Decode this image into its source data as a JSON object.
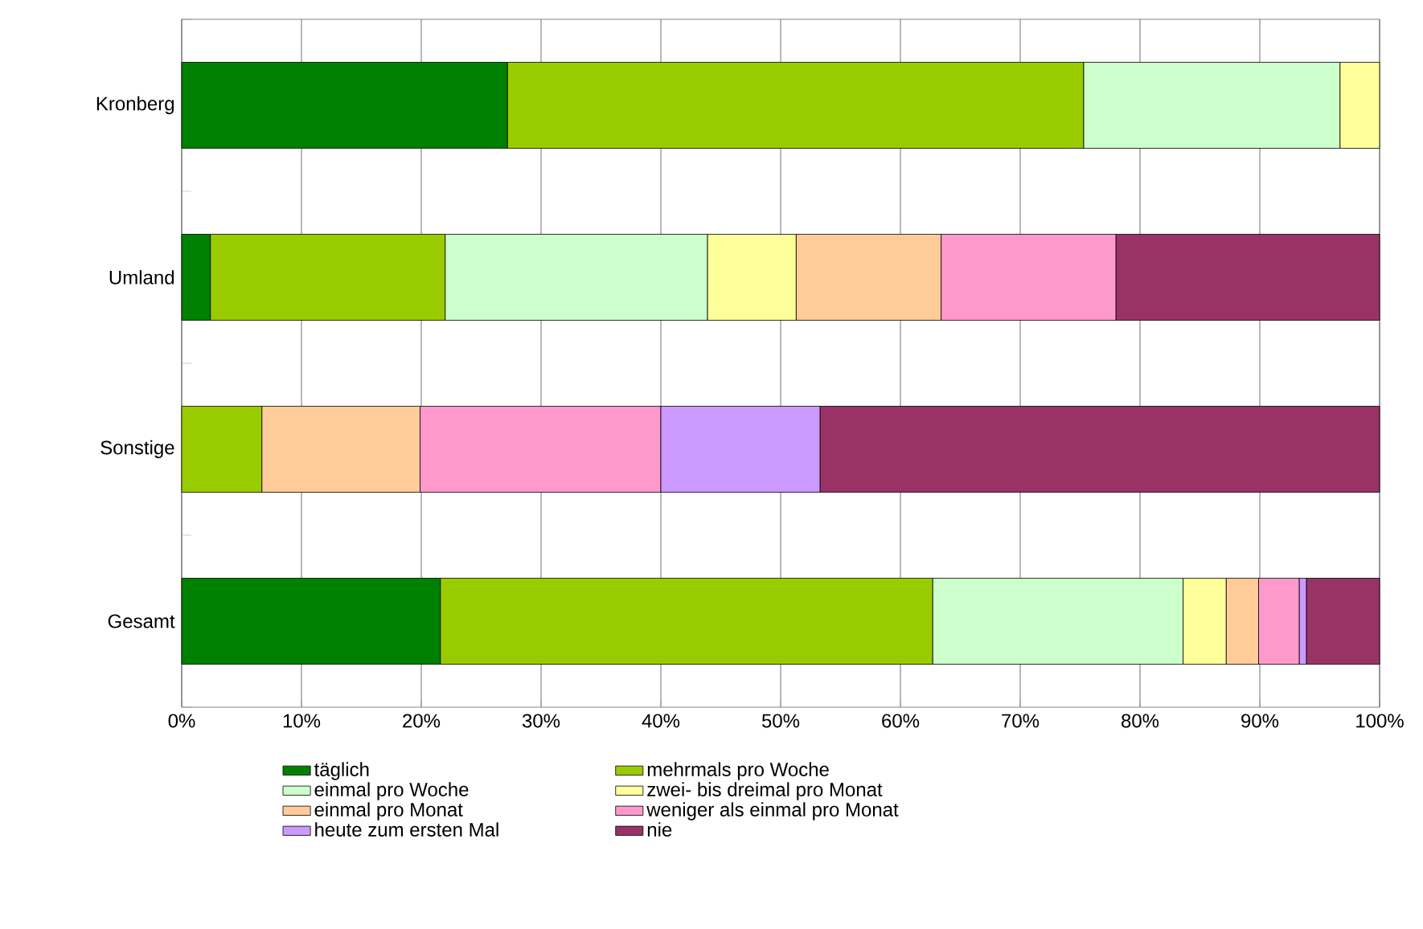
{
  "chart_data": {
    "type": "bar",
    "orientation": "horizontal",
    "stacked": true,
    "categories": [
      "Kronberg",
      "Umland",
      "Sonstige",
      "Gesamt"
    ],
    "series": [
      {
        "name": "täglich",
        "color": "#008000",
        "values": [
          27.2,
          2.4,
          null,
          21.6
        ]
      },
      {
        "name": "mehrmals pro Woche",
        "color": "#99cc00",
        "values": [
          48.1,
          19.6,
          6.7,
          41.1
        ]
      },
      {
        "name": "einmal pro Woche",
        "color": "#ccffcc",
        "values": [
          21.4,
          21.9,
          null,
          20.9
        ]
      },
      {
        "name": "zwei- bis dreimal pro Monat",
        "color": "#ffff99",
        "values": [
          3.3,
          7.4,
          null,
          3.6
        ]
      },
      {
        "name": "einmal pro Monat",
        "color": "#ffcc99",
        "values": [
          null,
          12.1,
          13.2,
          2.7
        ]
      },
      {
        "name": "weniger als einmal pro Monat",
        "color": "#ff99cc",
        "values": [
          null,
          14.6,
          20.1,
          3.4
        ]
      },
      {
        "name": "heute zum ersten Mal",
        "color": "#cc99ff",
        "values": [
          null,
          null,
          13.3,
          0.6
        ]
      },
      {
        "name": "nie",
        "color": "#993366",
        "values": [
          null,
          22.0,
          46.7,
          6.1
        ]
      }
    ],
    "xlim": [
      0,
      100
    ],
    "xticks": [
      {
        "value": 0,
        "label": "0%"
      },
      {
        "value": 10,
        "label": "10%"
      },
      {
        "value": 20,
        "label": "20%"
      },
      {
        "value": 30,
        "label": "30%"
      },
      {
        "value": 40,
        "label": "40%"
      },
      {
        "value": 50,
        "label": "50%"
      },
      {
        "value": 60,
        "label": "60%"
      },
      {
        "value": 70,
        "label": "70%"
      },
      {
        "value": 80,
        "label": "80%"
      },
      {
        "value": 90,
        "label": "90%"
      },
      {
        "value": 100,
        "label": "100%"
      }
    ],
    "grid": "x",
    "legend": "bottom"
  }
}
